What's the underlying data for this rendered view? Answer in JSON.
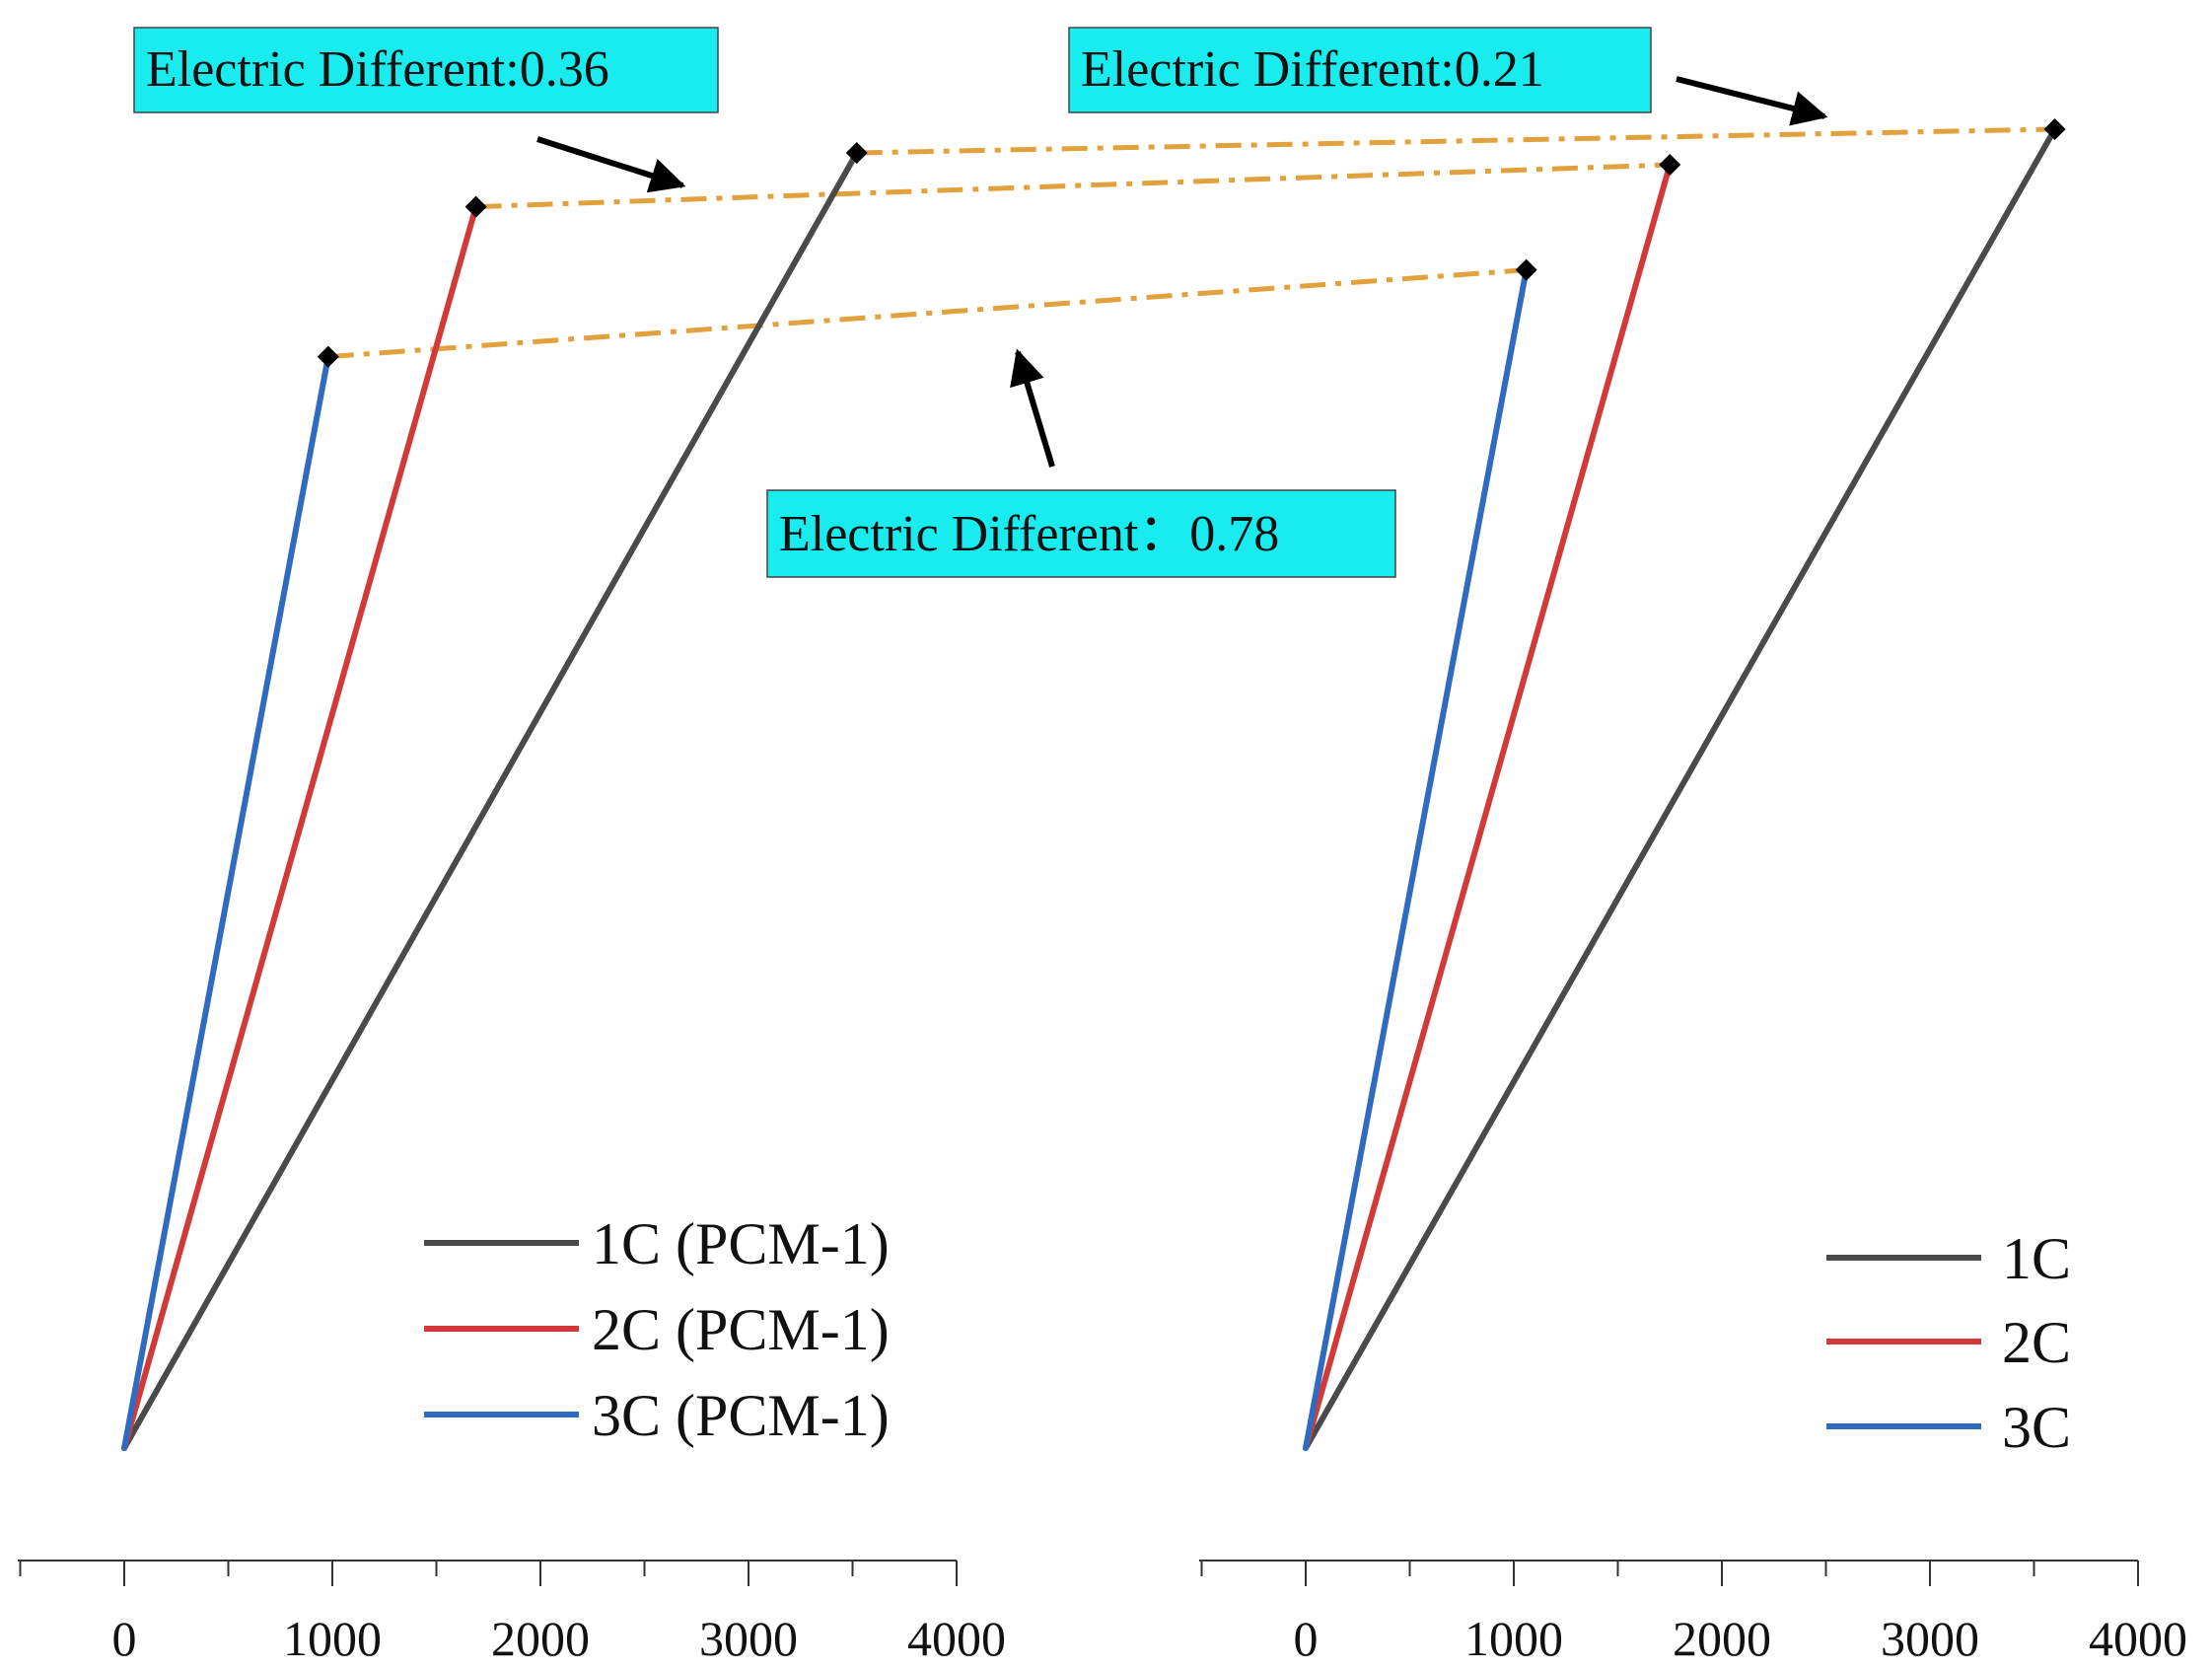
{
  "chart_data": [
    {
      "type": "line",
      "name": "left-panel",
      "xlabel": "",
      "ylabel": "",
      "xlim": [
        -500,
        4000
      ],
      "xticks": [
        0,
        1000,
        2000,
        3000,
        4000
      ],
      "tick_labels": [
        "0",
        "1000",
        "2000",
        "3000",
        "4000"
      ],
      "ylim": [
        0,
        1
      ],
      "legend_position": "bottom-right",
      "series": [
        {
          "name": "1C (PCM-1)",
          "color": "#4a4a4a",
          "x": [
            0,
            3520
          ],
          "y": [
            0,
            0.985
          ]
        },
        {
          "name": "2C (PCM-1)",
          "color": "#d23a3a",
          "x": [
            0,
            1690
          ],
          "y": [
            0,
            0.944
          ]
        },
        {
          "name": "3C (PCM-1)",
          "color": "#2f6bc0",
          "x": [
            0,
            980
          ],
          "y": [
            0,
            0.83
          ]
        }
      ]
    },
    {
      "type": "line",
      "name": "right-panel",
      "xlabel": "",
      "ylabel": "",
      "xlim": [
        -500,
        4000
      ],
      "xticks": [
        0,
        1000,
        2000,
        3000,
        4000
      ],
      "tick_labels": [
        "0",
        "1000",
        "2000",
        "3000",
        "4000"
      ],
      "ylim": [
        0,
        1
      ],
      "legend_position": "bottom-right",
      "series": [
        {
          "name": "1C",
          "color": "#4a4a4a",
          "x": [
            0,
            3600
          ],
          "y": [
            0,
            1.003
          ]
        },
        {
          "name": "2C",
          "color": "#d23a3a",
          "x": [
            0,
            1750
          ],
          "y": [
            0,
            0.976
          ]
        },
        {
          "name": "3C",
          "color": "#2f6bc0",
          "x": [
            0,
            1060
          ],
          "y": [
            0,
            0.896
          ]
        }
      ]
    }
  ],
  "connectors": [
    {
      "series": "1C",
      "color": "#e2a13c"
    },
    {
      "series": "2C",
      "color": "#e2a13c"
    },
    {
      "series": "3C",
      "color": "#e2a13c"
    }
  ],
  "annotations": [
    {
      "text": "Electric Different:0.36",
      "box_color": "#19ecef"
    },
    {
      "text": "Electric Different:0.21",
      "box_color": "#19ecef"
    },
    {
      "text": "Electric Different：0.78",
      "box_color": "#19ecef"
    }
  ]
}
